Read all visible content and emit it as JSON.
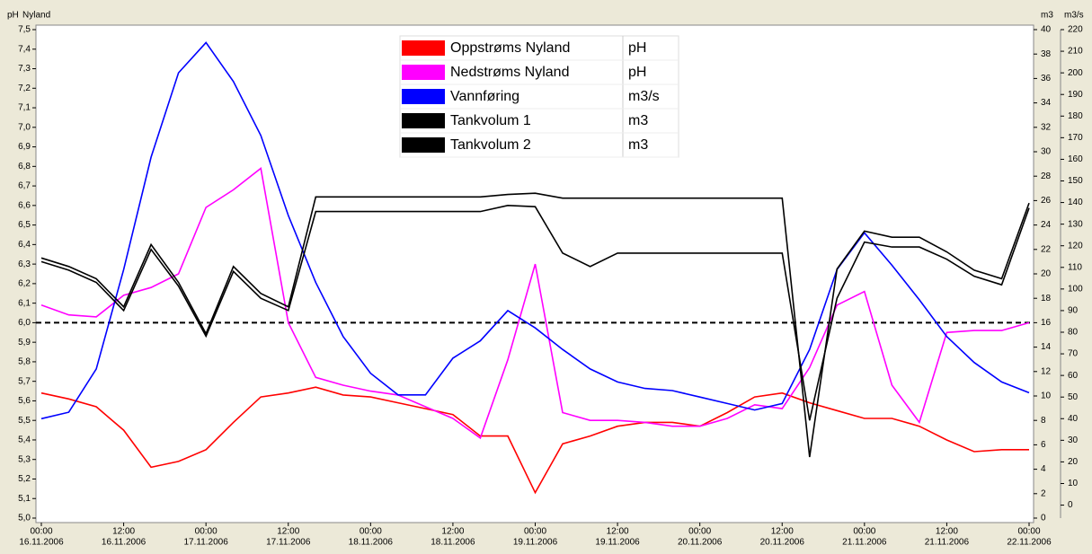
{
  "chart_data": {
    "type": "line",
    "title": "Nyland",
    "y_label": "pH",
    "y2_label": "m3",
    "y3_label": "m3/s",
    "xlim": [
      "2006-11-16T00:00",
      "2006-11-22T00:00"
    ],
    "xticks": [
      {
        "value": "2006-11-16T00:00",
        "label": [
          "00:00",
          "16.11.2006"
        ]
      },
      {
        "value": "2006-11-16T12:00",
        "label": [
          "12:00",
          "16.11.2006"
        ]
      },
      {
        "value": "2006-11-17T00:00",
        "label": [
          "00:00",
          "17.11.2006"
        ]
      },
      {
        "value": "2006-11-17T12:00",
        "label": [
          "12:00",
          "17.11.2006"
        ]
      },
      {
        "value": "2006-11-18T00:00",
        "label": [
          "00:00",
          "18.11.2006"
        ]
      },
      {
        "value": "2006-11-18T12:00",
        "label": [
          "12:00",
          "18.11.2006"
        ]
      },
      {
        "value": "2006-11-19T00:00",
        "label": [
          "00:00",
          "19.11.2006"
        ]
      },
      {
        "value": "2006-11-19T12:00",
        "label": [
          "12:00",
          "19.11.2006"
        ]
      },
      {
        "value": "2006-11-20T00:00",
        "label": [
          "00:00",
          "20.11.2006"
        ]
      },
      {
        "value": "2006-11-20T12:00",
        "label": [
          "12:00",
          "20.11.2006"
        ]
      },
      {
        "value": "2006-11-21T00:00",
        "label": [
          "00:00",
          "21.11.2006"
        ]
      },
      {
        "value": "2006-11-21T12:00",
        "label": [
          "12:00",
          "21.11.2006"
        ]
      },
      {
        "value": "2006-11-22T00:00",
        "label": [
          "00:00",
          "22.11.2006"
        ]
      }
    ],
    "ylim": [
      5.0,
      7.5
    ],
    "yticks": [
      {
        "value": 5.0,
        "label": "5,0"
      },
      {
        "value": 5.1,
        "label": "5,1"
      },
      {
        "value": 5.2,
        "label": "5,2"
      },
      {
        "value": 5.3,
        "label": "5,3"
      },
      {
        "value": 5.4,
        "label": "5,4"
      },
      {
        "value": 5.5,
        "label": "5,5"
      },
      {
        "value": 5.6,
        "label": "5,6"
      },
      {
        "value": 5.7,
        "label": "5,7"
      },
      {
        "value": 5.8,
        "label": "5,8"
      },
      {
        "value": 5.9,
        "label": "5,9"
      },
      {
        "value": 6.0,
        "label": "6,0"
      },
      {
        "value": 6.1,
        "label": "6,1"
      },
      {
        "value": 6.2,
        "label": "6,2"
      },
      {
        "value": 6.3,
        "label": "6,3"
      },
      {
        "value": 6.4,
        "label": "6,4"
      },
      {
        "value": 6.5,
        "label": "6,5"
      },
      {
        "value": 6.6,
        "label": "6,6"
      },
      {
        "value": 6.7,
        "label": "6,7"
      },
      {
        "value": 6.8,
        "label": "6,8"
      },
      {
        "value": 6.9,
        "label": "6,9"
      },
      {
        "value": 7.0,
        "label": "7,0"
      },
      {
        "value": 7.1,
        "label": "7,1"
      },
      {
        "value": 7.2,
        "label": "7,2"
      },
      {
        "value": 7.3,
        "label": "7,3"
      },
      {
        "value": 7.4,
        "label": "7,4"
      },
      {
        "value": 7.5,
        "label": "7,5"
      }
    ],
    "y2lim": [
      0,
      40
    ],
    "y2ticks": [
      0,
      2,
      4,
      6,
      8,
      10,
      12,
      14,
      16,
      18,
      20,
      22,
      24,
      26,
      28,
      30,
      32,
      34,
      36,
      38,
      40
    ],
    "y3lim": [
      -6,
      220
    ],
    "y3ticks": [
      0,
      10,
      20,
      30,
      40,
      50,
      60,
      70,
      80,
      90,
      100,
      110,
      120,
      130,
      140,
      150,
      160,
      170,
      180,
      190,
      200,
      210,
      220
    ],
    "reference_line": 6.0,
    "x": [
      "2006-11-16T00:00",
      "2006-11-16T04:00",
      "2006-11-16T08:00",
      "2006-11-16T12:00",
      "2006-11-16T16:00",
      "2006-11-16T20:00",
      "2006-11-17T00:00",
      "2006-11-17T04:00",
      "2006-11-17T08:00",
      "2006-11-17T12:00",
      "2006-11-17T16:00",
      "2006-11-17T20:00",
      "2006-11-18T00:00",
      "2006-11-18T04:00",
      "2006-11-18T08:00",
      "2006-11-18T12:00",
      "2006-11-18T16:00",
      "2006-11-18T20:00",
      "2006-11-19T00:00",
      "2006-11-19T04:00",
      "2006-11-19T08:00",
      "2006-11-19T12:00",
      "2006-11-19T16:00",
      "2006-11-19T20:00",
      "2006-11-20T00:00",
      "2006-11-20T04:00",
      "2006-11-20T08:00",
      "2006-11-20T12:00",
      "2006-11-20T16:00",
      "2006-11-20T20:00",
      "2006-11-21T00:00",
      "2006-11-21T04:00",
      "2006-11-21T08:00",
      "2006-11-21T12:00",
      "2006-11-21T16:00",
      "2006-11-21T20:00",
      "2006-11-22T00:00"
    ],
    "series": [
      {
        "name": "Oppstrøms Nyland",
        "unit": "pH",
        "color": "#ff0000",
        "axis": "y",
        "values": [
          5.64,
          5.61,
          5.57,
          5.45,
          5.26,
          5.29,
          5.35,
          5.49,
          5.62,
          5.64,
          5.67,
          5.63,
          5.62,
          5.59,
          5.56,
          5.53,
          5.42,
          5.42,
          5.13,
          5.38,
          5.42,
          5.47,
          5.49,
          5.49,
          5.47,
          5.54,
          5.62,
          5.64,
          5.59,
          5.55,
          5.51,
          5.51,
          5.47,
          5.4,
          5.34,
          5.35,
          5.35
        ]
      },
      {
        "name": "Nedstrøms Nyland",
        "unit": "pH",
        "color": "#ff00ff",
        "axis": "y",
        "values": [
          6.09,
          6.04,
          6.03,
          6.14,
          6.18,
          6.25,
          6.59,
          6.68,
          6.79,
          6.0,
          5.72,
          5.68,
          5.65,
          5.63,
          5.57,
          5.51,
          5.41,
          5.81,
          6.3,
          5.54,
          5.5,
          5.5,
          5.49,
          5.47,
          5.47,
          5.51,
          5.58,
          5.56,
          5.77,
          6.09,
          6.16,
          5.68,
          5.49,
          5.95,
          5.96,
          5.96,
          6.0
        ]
      },
      {
        "name": "Vannføring",
        "unit": "m3/s",
        "color": "#0000ff",
        "axis": "y3",
        "values": [
          40,
          43,
          63,
          109,
          161,
          200,
          214,
          196,
          171,
          134,
          103,
          78,
          61,
          51,
          51,
          68,
          76,
          90,
          82,
          72,
          63,
          57,
          54,
          53,
          50,
          47,
          44,
          47,
          72,
          109,
          126,
          111,
          95,
          78,
          66,
          57,
          52
        ]
      },
      {
        "name": "Tankvolum 1",
        "unit": "m3",
        "color": "#000000",
        "axis": "y2",
        "values": [
          21.3,
          20.6,
          19.6,
          17.3,
          22.4,
          19.3,
          15.1,
          20.6,
          18.4,
          17.3,
          26.3,
          26.3,
          26.3,
          26.3,
          26.3,
          26.3,
          26.3,
          26.5,
          26.6,
          26.2,
          26.2,
          26.2,
          26.2,
          26.2,
          26.2,
          26.2,
          26.2,
          26.2,
          5.0,
          20.4,
          23.5,
          23.0,
          23.0,
          21.8,
          20.3,
          19.6,
          25.8
        ]
      },
      {
        "name": "Tankvolum 2",
        "unit": "m3",
        "color": "#000000",
        "axis": "y2",
        "values": [
          21.0,
          20.3,
          19.3,
          17.0,
          22.0,
          19.0,
          14.9,
          20.2,
          18.0,
          17.0,
          25.1,
          25.1,
          25.1,
          25.1,
          25.1,
          25.1,
          25.1,
          25.6,
          25.5,
          21.7,
          20.6,
          21.7,
          21.7,
          21.7,
          21.7,
          21.7,
          21.7,
          21.7,
          8.0,
          18.0,
          22.6,
          22.2,
          22.2,
          21.2,
          19.8,
          19.1,
          25.4
        ]
      }
    ]
  }
}
